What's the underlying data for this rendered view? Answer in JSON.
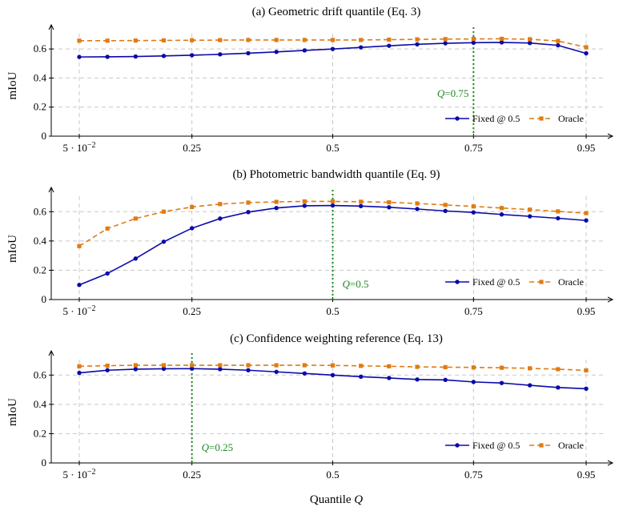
{
  "figure": {
    "xlabel": "Quantile Q"
  },
  "chart_data": [
    {
      "type": "line",
      "title": "(a) Geometric drift quantile (Eq. 3)",
      "xlabel": "Quantile Q",
      "ylabel": "mIoU",
      "xlim": [
        0.05,
        0.95
      ],
      "ylim": [
        0,
        0.7
      ],
      "x_ticks": [
        0.05,
        0.25,
        0.5,
        0.75,
        0.95
      ],
      "x_tick_labels": [
        "5 · 10−2",
        "0.25",
        "0.5",
        "0.75",
        "0.95"
      ],
      "y_ticks": [
        0,
        0.2,
        0.4,
        0.6
      ],
      "y_tick_labels": [
        "0",
        "0.2",
        "0.4",
        "0.6"
      ],
      "grid": true,
      "legend": "bottom-right",
      "x": [
        0.05,
        0.1,
        0.15,
        0.2,
        0.25,
        0.3,
        0.35,
        0.4,
        0.45,
        0.5,
        0.55,
        0.6,
        0.65,
        0.7,
        0.75,
        0.8,
        0.85,
        0.9,
        0.95
      ],
      "series": [
        {
          "name": "Fixed @ 0.5",
          "color": "#0a0aa8",
          "style": "solid",
          "marker": "circle",
          "values": [
            0.545,
            0.546,
            0.548,
            0.552,
            0.557,
            0.563,
            0.571,
            0.58,
            0.59,
            0.6,
            0.611,
            0.622,
            0.632,
            0.639,
            0.643,
            0.645,
            0.641,
            0.625,
            0.57
          ]
        },
        {
          "name": "Oracle",
          "color": "#e07b14",
          "style": "dashed",
          "marker": "square",
          "values": [
            0.657,
            0.657,
            0.658,
            0.659,
            0.66,
            0.661,
            0.662,
            0.662,
            0.662,
            0.662,
            0.662,
            0.664,
            0.666,
            0.668,
            0.669,
            0.67,
            0.667,
            0.655,
            0.612
          ]
        }
      ],
      "annotation": {
        "x": 0.75,
        "label": "Q",
        "value": "=0.75",
        "color": "#1f8a1f"
      }
    },
    {
      "type": "line",
      "title": "(b) Photometric bandwidth quantile (Eq. 9)",
      "xlabel": "Quantile Q",
      "ylabel": "mIoU",
      "xlim": [
        0.05,
        0.95
      ],
      "ylim": [
        0,
        0.7
      ],
      "x_ticks": [
        0.05,
        0.25,
        0.5,
        0.75,
        0.95
      ],
      "x_tick_labels": [
        "5 · 10−2",
        "0.25",
        "0.5",
        "0.75",
        "0.95"
      ],
      "y_ticks": [
        0,
        0.2,
        0.4,
        0.6
      ],
      "y_tick_labels": [
        "0",
        "0.2",
        "0.4",
        "0.6"
      ],
      "grid": true,
      "legend": "bottom-right",
      "x": [
        0.05,
        0.1,
        0.15,
        0.2,
        0.25,
        0.3,
        0.35,
        0.4,
        0.45,
        0.5,
        0.55,
        0.6,
        0.65,
        0.7,
        0.75,
        0.8,
        0.85,
        0.9,
        0.95
      ],
      "series": [
        {
          "name": "Fixed @ 0.5",
          "color": "#0a0aa8",
          "style": "solid",
          "marker": "circle",
          "values": [
            0.1,
            0.178,
            0.28,
            0.395,
            0.487,
            0.553,
            0.597,
            0.625,
            0.64,
            0.642,
            0.638,
            0.63,
            0.618,
            0.605,
            0.595,
            0.581,
            0.568,
            0.555,
            0.54
          ]
        },
        {
          "name": "Oracle",
          "color": "#e07b14",
          "style": "dashed",
          "marker": "square",
          "values": [
            0.365,
            0.485,
            0.553,
            0.6,
            0.632,
            0.652,
            0.662,
            0.667,
            0.67,
            0.67,
            0.668,
            0.664,
            0.656,
            0.646,
            0.636,
            0.625,
            0.614,
            0.602,
            0.59
          ]
        }
      ],
      "annotation": {
        "x": 0.5,
        "label": "Q",
        "value": "=0.5",
        "color": "#1f8a1f"
      }
    },
    {
      "type": "line",
      "title": "(c) Confidence weighting reference (Eq. 13)",
      "xlabel": "Quantile Q",
      "ylabel": "mIoU",
      "xlim": [
        0.05,
        0.95
      ],
      "ylim": [
        0,
        0.7
      ],
      "x_ticks": [
        0.05,
        0.25,
        0.5,
        0.75,
        0.95
      ],
      "x_tick_labels": [
        "5 · 10−2",
        "0.25",
        "0.5",
        "0.75",
        "0.95"
      ],
      "y_ticks": [
        0,
        0.2,
        0.4,
        0.6
      ],
      "y_tick_labels": [
        "0",
        "0.2",
        "0.4",
        "0.6"
      ],
      "grid": true,
      "legend": "bottom-right",
      "x": [
        0.05,
        0.1,
        0.15,
        0.2,
        0.25,
        0.3,
        0.35,
        0.4,
        0.45,
        0.5,
        0.55,
        0.6,
        0.65,
        0.7,
        0.75,
        0.8,
        0.85,
        0.9,
        0.95
      ],
      "series": [
        {
          "name": "Fixed @ 0.5",
          "color": "#0a0aa8",
          "style": "solid",
          "marker": "circle",
          "values": [
            0.615,
            0.633,
            0.64,
            0.643,
            0.644,
            0.64,
            0.633,
            0.622,
            0.611,
            0.6,
            0.589,
            0.58,
            0.57,
            0.567,
            0.553,
            0.546,
            0.53,
            0.515,
            0.507
          ]
        },
        {
          "name": "Oracle",
          "color": "#e07b14",
          "style": "dashed",
          "marker": "square",
          "values": [
            0.66,
            0.664,
            0.667,
            0.667,
            0.667,
            0.667,
            0.667,
            0.667,
            0.667,
            0.666,
            0.663,
            0.66,
            0.656,
            0.654,
            0.652,
            0.65,
            0.646,
            0.64,
            0.632
          ]
        }
      ],
      "annotation": {
        "x": 0.25,
        "label": "Q",
        "value": "=0.25",
        "color": "#1f8a1f"
      }
    }
  ]
}
